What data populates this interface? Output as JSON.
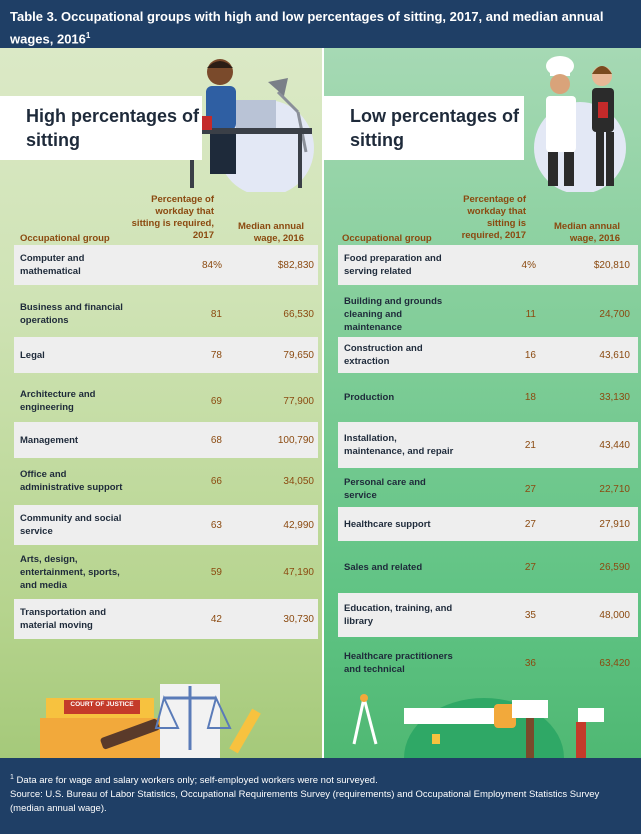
{
  "title": "Table 3. Occupational groups with high and low percentages of sitting, 2017, and median annual wages, 2016",
  "title_footnote_mark": "1",
  "left": {
    "heading": "High percentages of sitting",
    "columns": [
      "Occupational group",
      "Percentage of workday that sitting is required, 2017",
      "Median annual wage, 2016"
    ],
    "rows": [
      {
        "group": "Computer and mathematical",
        "pct": "84%",
        "wage": "$82,830"
      },
      {
        "group": "Business and financial operations",
        "pct": "81",
        "wage": "66,530"
      },
      {
        "group": "Legal",
        "pct": "78",
        "wage": "79,650"
      },
      {
        "group": "Architecture and engineering",
        "pct": "69",
        "wage": "77,900"
      },
      {
        "group": "Management",
        "pct": "68",
        "wage": "100,790"
      },
      {
        "group": "Office and administrative support",
        "pct": "66",
        "wage": "34,050"
      },
      {
        "group": "Community and social service",
        "pct": "63",
        "wage": "42,990"
      },
      {
        "group": "Arts, design, entertainment, sports, and media",
        "pct": "59",
        "wage": "47,190"
      },
      {
        "group": "Transportation and material moving",
        "pct": "42",
        "wage": "30,730"
      }
    ],
    "sign_text": "COURT OF JUSTICE"
  },
  "right": {
    "heading": "Low percentages of sitting",
    "columns": [
      "Occupational group",
      "Percentage of workday that sitting is required, 2017",
      "Median annual wage, 2016"
    ],
    "rows": [
      {
        "group": "Food preparation and serving related",
        "pct": "4%",
        "wage": "$20,810"
      },
      {
        "group": "Building and grounds cleaning and maintenance",
        "pct": "11",
        "wage": "24,700"
      },
      {
        "group": "Construction and extraction",
        "pct": "16",
        "wage": "43,610"
      },
      {
        "group": "Production",
        "pct": "18",
        "wage": "33,130"
      },
      {
        "group": "Installation, maintenance, and repair",
        "pct": "21",
        "wage": "43,440"
      },
      {
        "group": "Personal care and service",
        "pct": "27",
        "wage": "22,710"
      },
      {
        "group": "Healthcare support",
        "pct": "27",
        "wage": "27,910"
      },
      {
        "group": "Sales and related",
        "pct": "27",
        "wage": "26,590"
      },
      {
        "group": "Education, training, and library",
        "pct": "35",
        "wage": "48,000"
      },
      {
        "group": "Healthcare practitioners and technical",
        "pct": "36",
        "wage": "63,420"
      }
    ]
  },
  "footnote_mark": "1",
  "footnote": "Data are for wage and salary workers only; self-employed workers were not surveyed.",
  "source": "Source: U.S. Bureau of Labor Statistics, Occupational Requirements Survey (requirements) and Occupational Employment Statistics Survey (median annual wage)."
}
